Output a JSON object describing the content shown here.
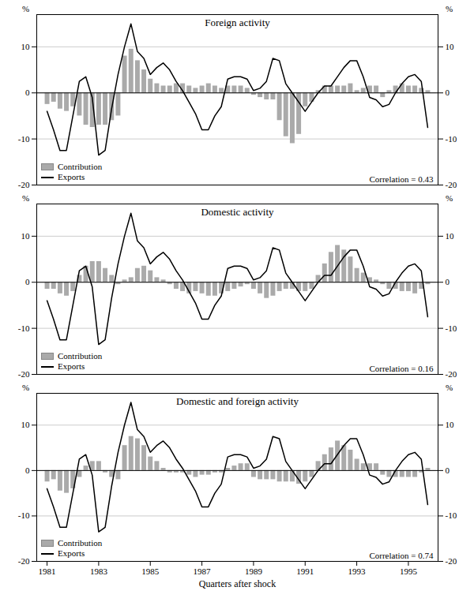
{
  "chart_data": [
    {
      "type": "bar",
      "title": "Foreign activity",
      "annotations": [
        "Correlation = 0.43"
      ],
      "ylabel": "%",
      "tick_labels": "y",
      "grid": true,
      "legend": "lower left",
      "xlim": [
        1980.6,
        1996.15
      ],
      "ylim": [
        -20,
        17
      ],
      "yticks": [
        -20,
        -10,
        0,
        10
      ],
      "x": [
        1981,
        1981.25,
        1981.5,
        1981.75,
        1982,
        1982.25,
        1982.5,
        1982.75,
        1983,
        1983.25,
        1983.5,
        1983.75,
        1984,
        1984.25,
        1984.5,
        1984.75,
        1985,
        1985.25,
        1985.5,
        1985.75,
        1986,
        1986.25,
        1986.5,
        1986.75,
        1987,
        1987.25,
        1987.5,
        1987.75,
        1988,
        1988.25,
        1988.5,
        1988.75,
        1989,
        1989.25,
        1989.5,
        1989.75,
        1990,
        1990.25,
        1990.5,
        1990.75,
        1991,
        1991.25,
        1991.5,
        1991.75,
        1992,
        1992.25,
        1992.5,
        1992.75,
        1993,
        1993.25,
        1993.5,
        1993.75,
        1994,
        1994.25,
        1994.5,
        1994.75,
        1995,
        1995.25,
        1995.5,
        1995.75
      ],
      "series": [
        {
          "name": "Contribution",
          "type": "bar",
          "color": "#aaaaaa",
          "values": [
            -2.5,
            -2.0,
            -3.5,
            -4.0,
            -3.0,
            -5.0,
            -7.0,
            -7.5,
            -7.0,
            -7.0,
            -6.0,
            -5.0,
            8.0,
            9.5,
            7.0,
            5.0,
            3.0,
            2.0,
            1.5,
            1.5,
            2.0,
            2.0,
            1.5,
            1.0,
            1.5,
            2.0,
            1.5,
            1.0,
            1.5,
            1.5,
            1.5,
            1.0,
            -0.5,
            -1.0,
            -1.5,
            -1.5,
            -6.0,
            -9.5,
            -11.0,
            -9.0,
            -3.0,
            -2.0,
            0.5,
            1.5,
            1.5,
            1.5,
            1.5,
            2.0,
            0.5,
            1.0,
            1.5,
            1.5,
            -1.0,
            0.5,
            1.5,
            2.0,
            1.5,
            1.5,
            1.0,
            0.5
          ]
        },
        {
          "name": "Exports",
          "type": "line",
          "color": "#000000",
          "values": [
            -4.0,
            -8.0,
            -12.5,
            -12.5,
            -5.0,
            2.5,
            3.5,
            -1.0,
            -13.5,
            -12.5,
            -3.5,
            4.0,
            10.0,
            15.0,
            9.0,
            7.5,
            4.0,
            5.5,
            6.5,
            5.0,
            2.5,
            0.5,
            -2.0,
            -4.5,
            -8.0,
            -8.0,
            -5.0,
            -3.0,
            3.0,
            3.5,
            3.5,
            3.0,
            0.5,
            1.0,
            2.5,
            7.5,
            7.0,
            2.0,
            0.0,
            -2.0,
            -4.0,
            -2.0,
            0.0,
            1.5,
            1.5,
            3.5,
            5.5,
            7.0,
            7.0,
            3.5,
            -1.0,
            -1.5,
            -3.0,
            -2.5,
            0.0,
            2.0,
            3.5,
            4.0,
            2.5,
            -7.5
          ]
        }
      ]
    },
    {
      "type": "bar",
      "title": "Domestic activity",
      "annotations": [
        "Correlation = 0.16"
      ],
      "ylabel": "%",
      "tick_labels": "y",
      "grid": true,
      "legend": "lower left",
      "xlim": [
        1980.6,
        1996.15
      ],
      "ylim": [
        -20,
        17
      ],
      "yticks": [
        -20,
        -10,
        0,
        10
      ],
      "x": [
        1981,
        1981.25,
        1981.5,
        1981.75,
        1982,
        1982.25,
        1982.5,
        1982.75,
        1983,
        1983.25,
        1983.5,
        1983.75,
        1984,
        1984.25,
        1984.5,
        1984.75,
        1985,
        1985.25,
        1985.5,
        1985.75,
        1986,
        1986.25,
        1986.5,
        1986.75,
        1987,
        1987.25,
        1987.5,
        1987.75,
        1988,
        1988.25,
        1988.5,
        1988.75,
        1989,
        1989.25,
        1989.5,
        1989.75,
        1990,
        1990.25,
        1990.5,
        1990.75,
        1991,
        1991.25,
        1991.5,
        1991.75,
        1992,
        1992.25,
        1992.5,
        1992.75,
        1993,
        1993.25,
        1993.5,
        1993.75,
        1994,
        1994.25,
        1994.5,
        1994.75,
        1995,
        1995.25,
        1995.5,
        1995.75
      ],
      "series": [
        {
          "name": "Contribution",
          "type": "bar",
          "color": "#aaaaaa",
          "values": [
            -1.5,
            -1.5,
            -2.5,
            -3.0,
            -2.0,
            1.5,
            3.5,
            4.5,
            4.5,
            3.0,
            1.5,
            -0.5,
            0.5,
            1.0,
            3.0,
            3.5,
            2.5,
            1.0,
            0.5,
            -0.5,
            -1.5,
            -2.0,
            -2.5,
            -2.0,
            -2.5,
            -3.0,
            -3.0,
            -2.5,
            -2.0,
            -1.5,
            -1.0,
            -0.5,
            -1.5,
            -2.5,
            -3.5,
            -3.0,
            -2.0,
            -1.5,
            -1.5,
            -2.0,
            -2.0,
            -1.5,
            1.5,
            4.0,
            6.5,
            8.0,
            7.0,
            5.5,
            3.0,
            2.0,
            1.0,
            0.5,
            -0.5,
            -1.5,
            -1.5,
            -2.0,
            -2.0,
            -2.5,
            -1.5,
            -0.5
          ]
        },
        {
          "name": "Exports",
          "type": "line",
          "color": "#000000",
          "values": [
            -4.0,
            -8.0,
            -12.5,
            -12.5,
            -5.0,
            2.5,
            3.5,
            -1.0,
            -13.5,
            -12.5,
            -3.5,
            4.0,
            10.0,
            15.0,
            9.0,
            7.5,
            4.0,
            5.5,
            6.5,
            5.0,
            2.5,
            0.5,
            -2.0,
            -4.5,
            -8.0,
            -8.0,
            -5.0,
            -3.0,
            3.0,
            3.5,
            3.5,
            3.0,
            0.5,
            1.0,
            2.5,
            7.5,
            7.0,
            2.0,
            0.0,
            -2.0,
            -4.0,
            -2.0,
            0.0,
            1.5,
            1.5,
            3.5,
            5.5,
            7.0,
            7.0,
            3.5,
            -1.0,
            -1.5,
            -3.0,
            -2.5,
            0.0,
            2.0,
            3.5,
            4.0,
            2.5,
            -7.5
          ]
        }
      ]
    },
    {
      "type": "bar",
      "title": "Domestic and foreign activity",
      "annotations": [
        "Correlation = 0.74"
      ],
      "xlabel": "Quarters after shock",
      "ylabel": "%",
      "grid": true,
      "legend": "lower left",
      "xlim": [
        1980.6,
        1996.15
      ],
      "xticks": [
        1981,
        1983,
        1985,
        1987,
        1989,
        1991,
        1993,
        1995
      ],
      "ylim": [
        -20,
        17
      ],
      "yticks": [
        -20,
        -10,
        0,
        10
      ],
      "x": [
        1981,
        1981.25,
        1981.5,
        1981.75,
        1982,
        1982.25,
        1982.5,
        1982.75,
        1983,
        1983.25,
        1983.5,
        1983.75,
        1984,
        1984.25,
        1984.5,
        1984.75,
        1985,
        1985.25,
        1985.5,
        1985.75,
        1986,
        1986.25,
        1986.5,
        1986.75,
        1987,
        1987.25,
        1987.5,
        1987.75,
        1988,
        1988.25,
        1988.5,
        1988.75,
        1989,
        1989.25,
        1989.5,
        1989.75,
        1990,
        1990.25,
        1990.5,
        1990.75,
        1991,
        1991.25,
        1991.5,
        1991.75,
        1992,
        1992.25,
        1992.5,
        1992.75,
        1993,
        1993.25,
        1993.5,
        1993.75,
        1994,
        1994.25,
        1994.5,
        1994.75,
        1995,
        1995.25,
        1995.5,
        1995.75
      ],
      "series": [
        {
          "name": "Contribution",
          "type": "bar",
          "color": "#aaaaaa",
          "values": [
            -2.5,
            -2.0,
            -4.5,
            -5.0,
            -4.0,
            -1.5,
            1.0,
            2.0,
            2.0,
            -0.5,
            -1.5,
            -2.0,
            5.5,
            7.5,
            7.0,
            5.5,
            3.0,
            2.0,
            0.5,
            -0.5,
            -0.5,
            -0.5,
            -1.0,
            -1.5,
            -1.0,
            -1.0,
            -0.5,
            -0.5,
            0.5,
            1.0,
            1.5,
            1.5,
            -1.5,
            -2.0,
            -2.0,
            -2.0,
            -2.5,
            -2.5,
            -2.5,
            -3.0,
            -2.5,
            -1.5,
            2.0,
            3.5,
            5.0,
            6.5,
            5.5,
            4.5,
            2.5,
            1.5,
            1.5,
            1.5,
            -1.0,
            -1.5,
            -1.5,
            -1.5,
            -1.5,
            -1.5,
            -0.5,
            0.5
          ]
        },
        {
          "name": "Exports",
          "type": "line",
          "color": "#000000",
          "values": [
            -4.0,
            -8.0,
            -12.5,
            -12.5,
            -5.0,
            2.5,
            3.5,
            -1.0,
            -13.5,
            -12.5,
            -3.5,
            4.0,
            10.0,
            15.0,
            9.0,
            7.5,
            4.0,
            5.5,
            6.5,
            5.0,
            2.5,
            0.5,
            -2.0,
            -4.5,
            -8.0,
            -8.0,
            -5.0,
            -3.0,
            3.0,
            3.5,
            3.5,
            3.0,
            0.5,
            1.0,
            2.5,
            7.5,
            7.0,
            2.0,
            0.0,
            -2.0,
            -4.0,
            -2.0,
            0.0,
            1.5,
            1.5,
            3.5,
            5.5,
            7.0,
            7.0,
            3.5,
            -1.0,
            -1.5,
            -3.0,
            -2.5,
            0.0,
            2.0,
            3.5,
            4.0,
            2.5,
            -7.5
          ]
        }
      ]
    }
  ]
}
